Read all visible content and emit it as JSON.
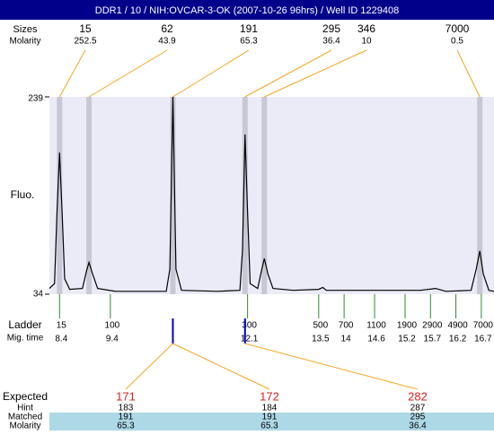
{
  "header": {
    "title": "DDR1 / 10 / NIH:OVCAR-3-OK (2007-10-26 96hrs) / Well ID 1229408"
  },
  "peaks": {
    "labels": [
      "Sizes",
      "Molarity"
    ],
    "items": [
      {
        "size": 15,
        "molarity": 252.5,
        "time": 8.4
      },
      {
        "size": 62,
        "molarity": 43.9,
        "time": 8.98
      },
      {
        "size": 191,
        "molarity": 65.3,
        "time": 10.63
      },
      {
        "size": 295,
        "molarity": 36.4,
        "time": 12.05
      },
      {
        "size": 346,
        "molarity": 10,
        "time": 12.43
      },
      {
        "size": 7000,
        "molarity": 0.5,
        "time": 16.67
      }
    ]
  },
  "plot": {
    "y_label": "Fluo.",
    "ylim": [
      34,
      239
    ],
    "yticks": [
      34,
      239
    ],
    "xlim": [
      8.2,
      16.95
    ],
    "trace": {
      "time": [
        8.2,
        8.3,
        8.35,
        8.4,
        8.45,
        8.5,
        8.6,
        8.85,
        8.93,
        8.98,
        9.05,
        9.15,
        9.5,
        10.0,
        10.5,
        10.57,
        10.63,
        10.69,
        10.8,
        11.5,
        11.95,
        12.0,
        12.05,
        12.1,
        12.15,
        12.3,
        12.38,
        12.43,
        12.5,
        12.6,
        13.0,
        13.5,
        13.58,
        13.65,
        14.0,
        14.5,
        15.0,
        15.5,
        15.8,
        16.0,
        16.5,
        16.6,
        16.67,
        16.74,
        16.85,
        16.95
      ],
      "fluorescence": [
        40,
        45,
        120,
        181,
        120,
        50,
        39,
        40,
        58,
        67,
        55,
        40,
        37,
        37,
        37,
        60,
        239,
        60,
        38,
        37,
        38,
        80,
        200,
        120,
        45,
        40,
        60,
        71,
        55,
        40,
        38,
        39,
        41,
        38,
        38,
        38,
        38,
        38,
        40,
        37,
        38,
        60,
        79,
        55,
        38,
        37
      ]
    }
  },
  "ladder": {
    "labels": [
      "Ladder",
      "Mig. time"
    ],
    "sizes": [
      15,
      100,
      300,
      500,
      700,
      1100,
      1900,
      2900,
      4900,
      7000
    ],
    "times": [
      8.4,
      9.4,
      12.1,
      13.5,
      14,
      14.6,
      15.2,
      15.7,
      16.2,
      16.7
    ]
  },
  "expected": {
    "labels": [
      "Expected",
      "Hint",
      "Matched",
      "Molarity"
    ],
    "items": [
      {
        "expected": 171,
        "hint": 183,
        "matched": 191,
        "molarity": 65.3
      },
      {
        "expected": 172,
        "hint": 184,
        "matched": 191,
        "molarity": 65.3
      },
      {
        "expected": 282,
        "hint": 287,
        "matched": 295,
        "molarity": 36.4
      }
    ]
  }
}
